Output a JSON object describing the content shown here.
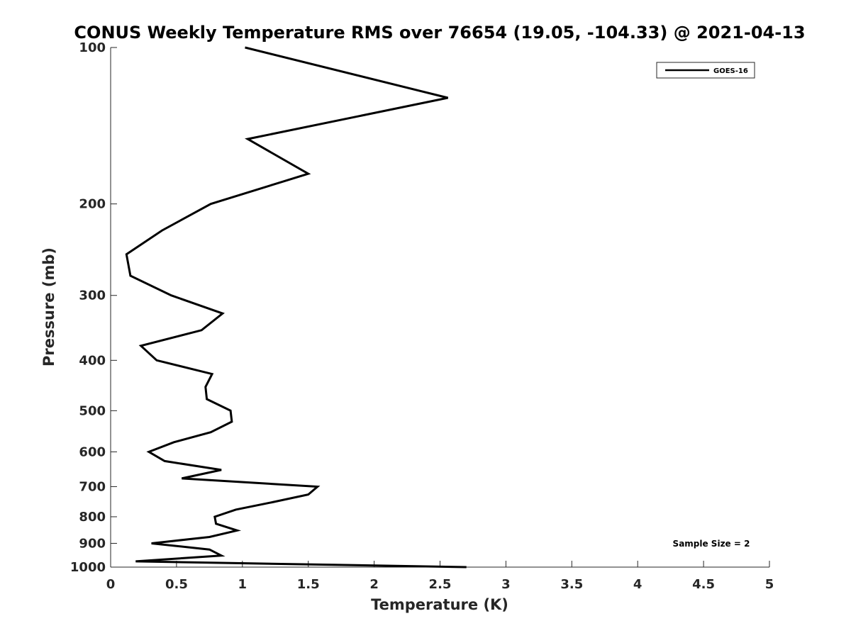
{
  "chart_data": {
    "type": "line",
    "title": "CONUS Weekly Temperature RMS over 76654 (19.05, -104.33) @ 2021-04-13",
    "xlabel": "Temperature (K)",
    "ylabel": "Pressure (mb)",
    "xlim": [
      0,
      5
    ],
    "ylim": [
      100,
      1000
    ],
    "yscale": "log",
    "yreversed": true,
    "grid": false,
    "legend_position": "top-right",
    "x_ticks": [
      0,
      0.5,
      1,
      1.5,
      2,
      2.5,
      3,
      3.5,
      4,
      4.5,
      5
    ],
    "x_tick_labels": [
      "0",
      "0.5",
      "1",
      "1.5",
      "2",
      "2.5",
      "3",
      "3.5",
      "4",
      "4.5",
      "5"
    ],
    "y_ticks": [
      100,
      200,
      300,
      400,
      500,
      600,
      700,
      800,
      900,
      1000
    ],
    "y_tick_labels": [
      "100",
      "200",
      "300",
      "400",
      "500",
      "600",
      "700",
      "800",
      "900",
      "1000"
    ],
    "series": [
      {
        "name": "GOES-16",
        "color": "#000000",
        "points": [
          {
            "x": 1.02,
            "y": 100
          },
          {
            "x": 2.56,
            "y": 125
          },
          {
            "x": 1.04,
            "y": 150
          },
          {
            "x": 1.5,
            "y": 175
          },
          {
            "x": 0.76,
            "y": 200
          },
          {
            "x": 0.39,
            "y": 225
          },
          {
            "x": 0.12,
            "y": 250
          },
          {
            "x": 0.15,
            "y": 275
          },
          {
            "x": 0.46,
            "y": 300
          },
          {
            "x": 0.85,
            "y": 325
          },
          {
            "x": 0.69,
            "y": 350
          },
          {
            "x": 0.23,
            "y": 375
          },
          {
            "x": 0.35,
            "y": 400
          },
          {
            "x": 0.77,
            "y": 425
          },
          {
            "x": 0.72,
            "y": 450
          },
          {
            "x": 0.73,
            "y": 475
          },
          {
            "x": 0.91,
            "y": 500
          },
          {
            "x": 0.92,
            "y": 525
          },
          {
            "x": 0.76,
            "y": 550
          },
          {
            "x": 0.48,
            "y": 575
          },
          {
            "x": 0.29,
            "y": 600
          },
          {
            "x": 0.41,
            "y": 625
          },
          {
            "x": 0.84,
            "y": 650
          },
          {
            "x": 0.54,
            "y": 675
          },
          {
            "x": 1.57,
            "y": 700
          },
          {
            "x": 1.5,
            "y": 725
          },
          {
            "x": 1.23,
            "y": 750
          },
          {
            "x": 0.95,
            "y": 775
          },
          {
            "x": 0.79,
            "y": 800
          },
          {
            "x": 0.8,
            "y": 825
          },
          {
            "x": 0.96,
            "y": 850
          },
          {
            "x": 0.75,
            "y": 875
          },
          {
            "x": 0.31,
            "y": 900
          },
          {
            "x": 0.75,
            "y": 925
          },
          {
            "x": 0.84,
            "y": 950
          },
          {
            "x": 0.19,
            "y": 975
          },
          {
            "x": 2.7,
            "y": 1000
          }
        ]
      }
    ],
    "annotation": "Sample Size = 2"
  }
}
